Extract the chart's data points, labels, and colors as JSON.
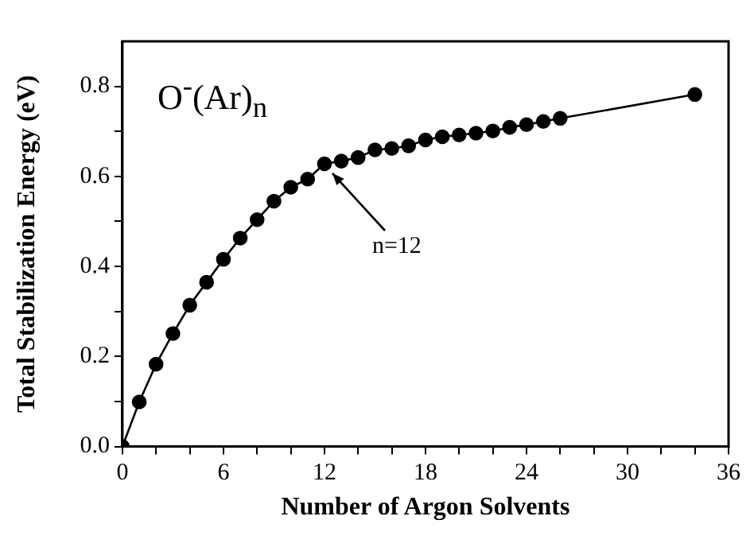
{
  "chart_data": {
    "type": "line",
    "title": "O$^{-}$(Ar)$_{n}$",
    "xlabel": "Number of Argon Solvents",
    "ylabel": "Total Stabilization Energy (eV)",
    "x": [
      0,
      1,
      2,
      3,
      4,
      5,
      6,
      7,
      8,
      9,
      10,
      11,
      12,
      13,
      14,
      15,
      16,
      17,
      18,
      19,
      20,
      21,
      22,
      23,
      24,
      25,
      26,
      34
    ],
    "values": [
      0,
      0.099,
      0.183,
      0.251,
      0.314,
      0.365,
      0.416,
      0.463,
      0.504,
      0.545,
      0.576,
      0.594,
      0.628,
      0.634,
      0.642,
      0.659,
      0.662,
      0.668,
      0.681,
      0.688,
      0.692,
      0.696,
      0.701,
      0.709,
      0.715,
      0.722,
      0.729,
      0.782
    ],
    "color": "#000000",
    "marker": "circle",
    "line_style": "solid",
    "grid": false,
    "legend": false,
    "xlim": [
      0,
      36
    ],
    "xticks": [
      0,
      {
        "value": 2,
        "label": null
      },
      {
        "value": 4,
        "label": null
      },
      6,
      {
        "value": 8,
        "label": null
      },
      {
        "value": 10,
        "label": null
      },
      12,
      {
        "value": 14,
        "label": null
      },
      {
        "value": 16,
        "label": null
      },
      18,
      {
        "value": 20,
        "label": null
      },
      {
        "value": 22,
        "label": null
      },
      24,
      {
        "value": 26,
        "label": null
      },
      {
        "value": 28,
        "label": null
      },
      30,
      {
        "value": 32,
        "label": null
      },
      {
        "value": 34,
        "label": null
      },
      36
    ],
    "ylim": [
      0,
      0.9
    ],
    "yticks": [
      {
        "value": 0,
        "label": "0.0"
      },
      {
        "value": 0.1,
        "label": null
      },
      0.2,
      {
        "value": 0.3,
        "label": null
      },
      0.4,
      {
        "value": 0.5,
        "label": null
      },
      0.6,
      {
        "value": 0.7,
        "label": null
      },
      0.8
    ],
    "annotations": [
      {
        "text": "n=12",
        "x": 12,
        "y": 0.628
      }
    ]
  }
}
